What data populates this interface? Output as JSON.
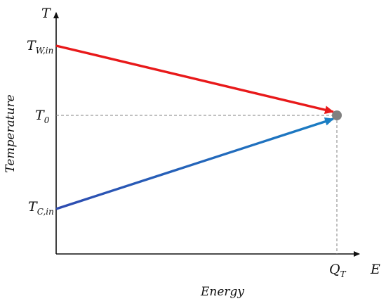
{
  "axes": {
    "y_axis_symbol": "T",
    "x_axis_symbol": "E",
    "y_axis_title": "Temperature",
    "x_axis_title": "Energy"
  },
  "labels": {
    "hot_inlet": {
      "main": "T",
      "sub": "W,in"
    },
    "cold_inlet": {
      "main": "T",
      "sub": "C,in"
    },
    "equilibrium": {
      "main": "T",
      "sub": "0"
    },
    "energy_total": {
      "main": "Q",
      "sub": "T"
    }
  },
  "colors": {
    "hot_line": "#e8191a",
    "cold_line_start": "#2e4bb0",
    "cold_line_end": "#1a7fc4",
    "end_point": "#808080",
    "guide_line": "#808080",
    "axis": "#111111"
  }
}
